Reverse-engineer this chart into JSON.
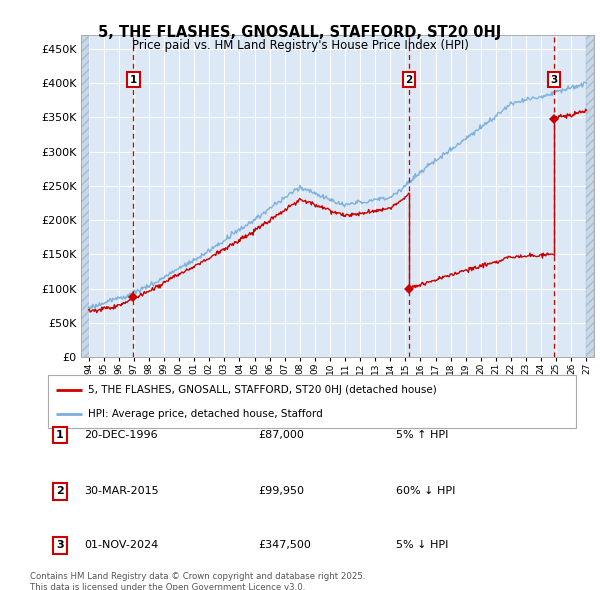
{
  "title": "5, THE FLASHES, GNOSALL, STAFFORD, ST20 0HJ",
  "subtitle": "Price paid vs. HM Land Registry's House Price Index (HPI)",
  "ylim": [
    0,
    470000
  ],
  "yticks": [
    0,
    50000,
    100000,
    150000,
    200000,
    250000,
    300000,
    350000,
    400000,
    450000
  ],
  "ytick_labels": [
    "£0",
    "£50K",
    "£100K",
    "£150K",
    "£200K",
    "£250K",
    "£300K",
    "£350K",
    "£400K",
    "£450K"
  ],
  "xlim_start": 1993.5,
  "xlim_end": 2027.5,
  "background_color": "#dce8f5",
  "grid_color": "#ffffff",
  "sale_dates_year": [
    1996.97,
    2015.25,
    2024.84
  ],
  "sale_prices": [
    87000,
    99950,
    347500
  ],
  "sale_labels": [
    "1",
    "2",
    "3"
  ],
  "sale_pct": [
    "5% ↑ HPI",
    "60% ↓ HPI",
    "5% ↓ HPI"
  ],
  "sale_date_labels": [
    "20-DEC-1996",
    "30-MAR-2015",
    "01-NOV-2024"
  ],
  "legend_label_red": "5, THE FLASHES, GNOSALL, STAFFORD, ST20 0HJ (detached house)",
  "legend_label_blue": "HPI: Average price, detached house, Stafford",
  "footer": "Contains HM Land Registry data © Crown copyright and database right 2025.\nThis data is licensed under the Open Government Licence v3.0.",
  "red_color": "#cc0000",
  "blue_color": "#7aaedc"
}
